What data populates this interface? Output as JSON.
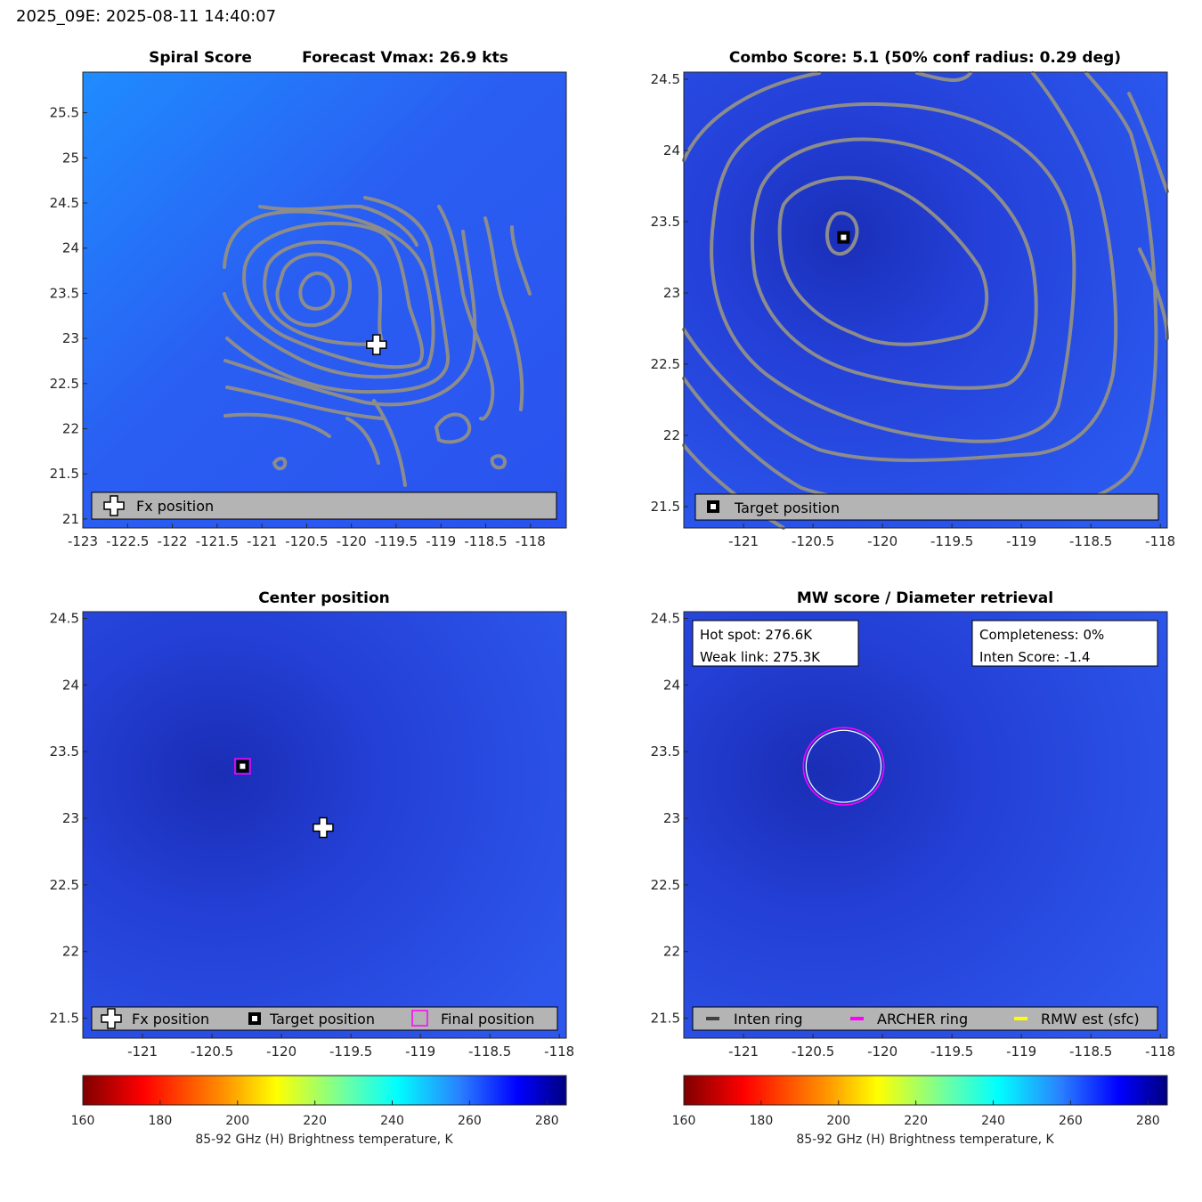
{
  "header": {
    "title": "2025_09E: 2025-08-11 14:40:07"
  },
  "colors": {
    "background_field": "#2b55f0",
    "contour": "#8c8c8c",
    "legend_bg": "#b4b4b4",
    "archer_ring": "#ff00ff",
    "inten_ring": "#404040",
    "rmw_est": "#ffff00"
  },
  "chart_data": [
    {
      "panel": "spiral",
      "type": "heatmap",
      "title_left": "Spiral Score",
      "title_right": "Forecast Vmax: 26.9 kts",
      "xlim": [
        -123,
        -117.6
      ],
      "ylim": [
        20.9,
        25.95
      ],
      "xticks": [
        -123,
        -122.5,
        -122,
        -121.5,
        -121,
        -120.5,
        -120,
        -119.5,
        -119,
        -118.5,
        -118
      ],
      "xticklabels": [
        "-123",
        "-122.5",
        "-122",
        "-121.5",
        "-121",
        "-120.5",
        "-120",
        "-119.5",
        "-119",
        "-118.5",
        "-118"
      ],
      "yticks": [
        21,
        21.5,
        22,
        22.5,
        23,
        23.5,
        24,
        24.5,
        25,
        25.5
      ],
      "yticklabels": [
        "21",
        "21.5",
        "22",
        "22.5",
        "23",
        "23.5",
        "24",
        "24.5",
        "25",
        "25.5"
      ],
      "contour_center": [
        -120.45,
        23.5
      ],
      "markers": [
        {
          "kind": "fx",
          "x": -119.72,
          "y": 22.93
        }
      ],
      "legend": [
        {
          "icon": "fx-cross-icon",
          "label": "Fx position"
        }
      ]
    },
    {
      "panel": "combo",
      "type": "heatmap",
      "title": "Combo Score: 5.1  (50% conf radius: 0.29 deg)",
      "xlim": [
        -121.43,
        -117.95
      ],
      "ylim": [
        21.35,
        24.55
      ],
      "xticks": [
        -121,
        -120.5,
        -120,
        -119.5,
        -119,
        -118.5,
        -118
      ],
      "xticklabels": [
        "-121",
        "-120.5",
        "-120",
        "-119.5",
        "-119",
        "-118.5",
        "-118"
      ],
      "yticks": [
        21.5,
        22,
        22.5,
        23,
        23.5,
        24,
        24.5
      ],
      "yticklabels": [
        "21.5",
        "22",
        "22.5",
        "23",
        "23.5",
        "24",
        "24.5"
      ],
      "contour_center": [
        -120.28,
        23.4
      ],
      "markers": [
        {
          "kind": "target",
          "x": -120.28,
          "y": 23.39
        }
      ],
      "legend": [
        {
          "icon": "target-square-icon",
          "label": "Target position"
        }
      ]
    },
    {
      "panel": "center",
      "type": "heatmap",
      "title": "Center position",
      "xlim": [
        -121.43,
        -117.95
      ],
      "ylim": [
        21.35,
        24.55
      ],
      "xticks": [
        -121,
        -120.5,
        -120,
        -119.5,
        -119,
        -118.5,
        -118
      ],
      "xticklabels": [
        "-121",
        "-120.5",
        "-120",
        "-119.5",
        "-119",
        "-118.5",
        "-118"
      ],
      "yticks": [
        21.5,
        22,
        22.5,
        23,
        23.5,
        24,
        24.5
      ],
      "yticklabels": [
        "21.5",
        "22",
        "22.5",
        "23",
        "23.5",
        "24",
        "24.5"
      ],
      "markers": [
        {
          "kind": "final",
          "x": -120.28,
          "y": 23.39
        },
        {
          "kind": "target",
          "x": -120.28,
          "y": 23.39
        },
        {
          "kind": "fx",
          "x": -119.7,
          "y": 22.93
        }
      ],
      "legend": [
        {
          "icon": "fx-cross-icon",
          "label": "Fx position"
        },
        {
          "icon": "target-square-icon",
          "label": "Target position"
        },
        {
          "icon": "final-square-icon",
          "label": "Final position"
        }
      ],
      "colorbar": {
        "range": [
          160,
          285
        ],
        "ticks": [
          160,
          180,
          200,
          220,
          240,
          260,
          280
        ],
        "label": "85-92 GHz (H) Brightness temperature, K"
      }
    },
    {
      "panel": "mwscore",
      "type": "heatmap",
      "title": "MW score / Diameter retrieval",
      "xlim": [
        -121.43,
        -117.95
      ],
      "ylim": [
        21.35,
        24.55
      ],
      "xticks": [
        -121,
        -120.5,
        -120,
        -119.5,
        -119,
        -118.5,
        -118
      ],
      "xticklabels": [
        "-121",
        "-120.5",
        "-120",
        "-119.5",
        "-119",
        "-118.5",
        "-118"
      ],
      "yticks": [
        21.5,
        22,
        22.5,
        23,
        23.5,
        24,
        24.5
      ],
      "yticklabels": [
        "21.5",
        "22",
        "22.5",
        "23",
        "23.5",
        "24",
        "24.5"
      ],
      "rings": {
        "center": [
          -120.28,
          23.39
        ],
        "archer_radius_deg": 0.29,
        "inner_radius_deg": 0.27
      },
      "info_left": [
        "Hot spot: 276.6K",
        "Weak link: 275.3K"
      ],
      "info_right": [
        "Completeness: 0%",
        "Inten Score: -1.4"
      ],
      "legend": [
        {
          "icon": "inten-ring-line-icon",
          "label": "Inten ring"
        },
        {
          "icon": "archer-ring-line-icon",
          "label": "ARCHER ring"
        },
        {
          "icon": "rmw-est-line-icon",
          "label": "RMW est (sfc)"
        }
      ],
      "colorbar": {
        "range": [
          160,
          285
        ],
        "ticks": [
          160,
          180,
          200,
          220,
          240,
          260,
          280
        ],
        "label": "85-92 GHz (H) Brightness temperature, K"
      }
    }
  ]
}
